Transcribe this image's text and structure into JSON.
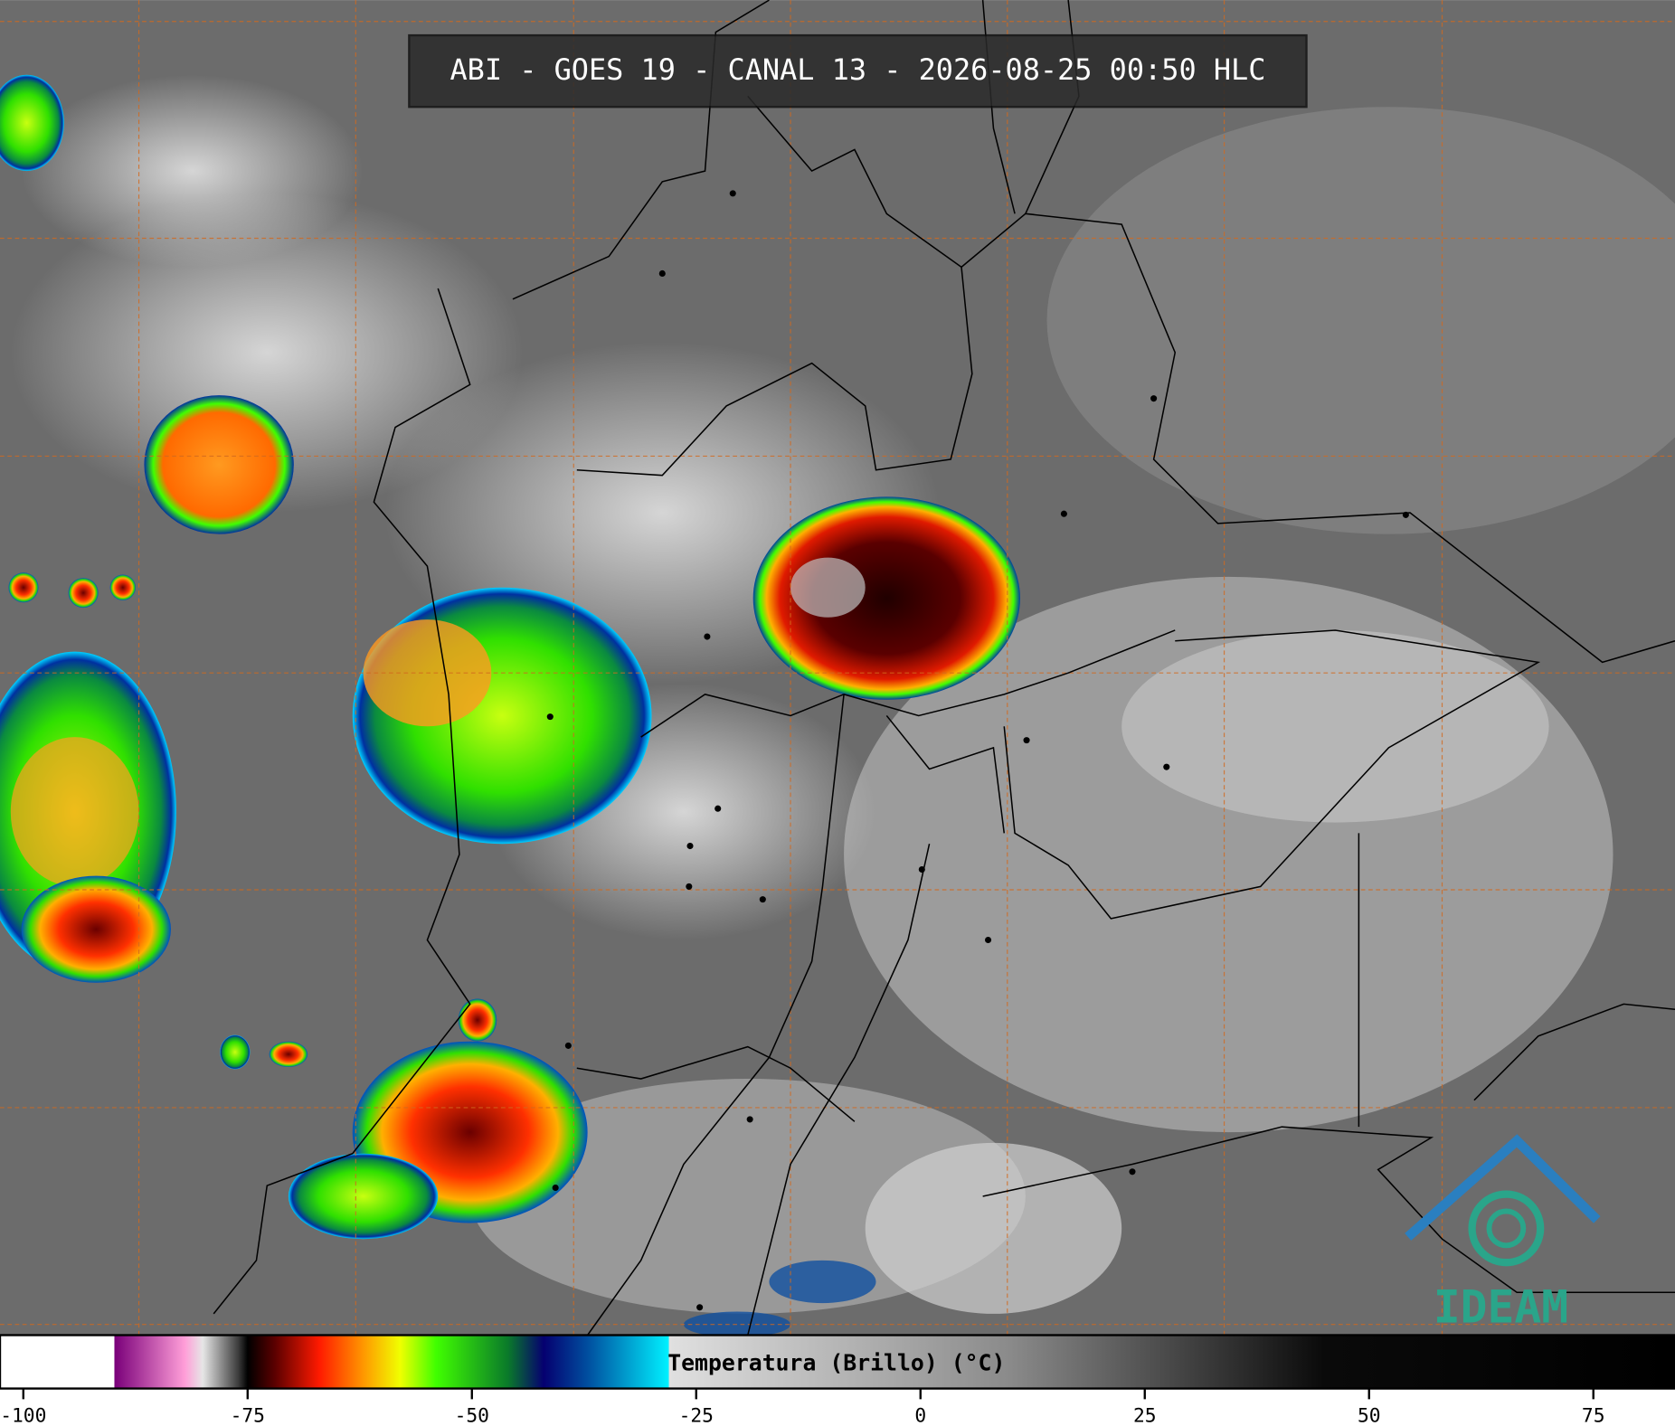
{
  "header": {
    "title": "ABI - GOES 19 - CANAL 13 - 2026-08-25 00:50 HLC"
  },
  "logo": {
    "text": "IDEAM"
  },
  "colorbar": {
    "label": "Temperatura (Brillo) (°C)",
    "lim": [
      -102.6,
      84.1
    ],
    "ticks": [
      -100,
      -75,
      -50,
      -25,
      0,
      25,
      50,
      75
    ],
    "stops": [
      {
        "value": -102.6,
        "color": "#ffffff"
      },
      {
        "value": -89.9,
        "color": "#ffffff"
      },
      {
        "value": -89.8,
        "color": "#7a007a"
      },
      {
        "value": -82,
        "color": "#ff9ed8"
      },
      {
        "value": -80,
        "color": "#e6e6e6"
      },
      {
        "value": -76,
        "color": "#3a3a3a"
      },
      {
        "value": -75,
        "color": "#000000"
      },
      {
        "value": -72,
        "color": "#5a0000"
      },
      {
        "value": -67,
        "color": "#ff1a00"
      },
      {
        "value": -62,
        "color": "#ff9a00"
      },
      {
        "value": -58,
        "color": "#f0ff00"
      },
      {
        "value": -54,
        "color": "#40ff00"
      },
      {
        "value": -46,
        "color": "#0a7a2a"
      },
      {
        "value": -42,
        "color": "#050070"
      },
      {
        "value": -37,
        "color": "#0050a0"
      },
      {
        "value": -28.1,
        "color": "#00f0ff"
      },
      {
        "value": -28,
        "color": "#e0e0e0"
      },
      {
        "value": 10,
        "color": "#8a8a8a"
      },
      {
        "value": 45,
        "color": "#0a0a0a"
      },
      {
        "value": 84.1,
        "color": "#000000"
      }
    ]
  }
}
